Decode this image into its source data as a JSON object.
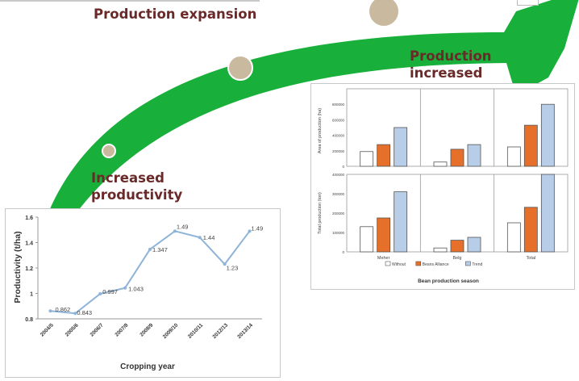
{
  "labels": {
    "expansion": "Production expansion",
    "increased_line1": "Production",
    "increased_line2": "increased",
    "productivity_line1": "Increased",
    "productivity_line2": "productivity"
  },
  "colors": {
    "arrow": "#18b03a",
    "circle": "#c9b99f",
    "label": "#6b2a2a",
    "line": "#8fb4d8",
    "bar_white": "#ffffff",
    "bar_orange": "#e6702a",
    "bar_blue": "#b7cde8"
  },
  "chart_data": [
    {
      "type": "line",
      "xlabel": "Cropping year",
      "ylabel": "Productivity (t/ha)",
      "categories": [
        "2004/5",
        "2005/6",
        "2006/7",
        "2007/8",
        "2008/9",
        "2009/10",
        "2010/11",
        "2012/13",
        "2013/14"
      ],
      "values": [
        0.862,
        0.843,
        0.997,
        1.043,
        1.347,
        1.49,
        1.44,
        1.23,
        1.49
      ],
      "data_labels": [
        "0.862",
        "0.843",
        "0.997",
        "1.043",
        "1.347",
        "1.49",
        "1.44",
        "1.23",
        "1.49"
      ],
      "yticks": [
        "0.8",
        "1",
        "1.2",
        "1.4",
        "1.6"
      ],
      "ylim": [
        0.8,
        1.6
      ]
    },
    {
      "type": "bar",
      "ylabel": "Area of production (ha)",
      "categories": [
        "Meher",
        "Belg",
        "Total"
      ],
      "series": [
        {
          "values": [
            190000,
            55000,
            250000
          ]
        },
        {
          "values": [
            280000,
            220000,
            530000
          ]
        },
        {
          "values": [
            500000,
            280000,
            800000
          ]
        }
      ],
      "yticks": [
        "0",
        "200000",
        "400000",
        "600000",
        "800000"
      ],
      "ylim": [
        0,
        1000000
      ]
    },
    {
      "type": "bar",
      "ylabel": "Total production (ton)",
      "xlabel": "Bean production season",
      "categories": [
        "Meher",
        "Belg",
        "Total"
      ],
      "series": [
        {
          "values": [
            130000,
            20000,
            150000
          ]
        },
        {
          "values": [
            175000,
            60000,
            230000
          ]
        },
        {
          "values": [
            310000,
            75000,
            400000
          ]
        }
      ],
      "yticks": [
        "0",
        "100000",
        "200000",
        "300000",
        "400000"
      ],
      "ylim": [
        0,
        400000
      ],
      "legend": [
        "Without",
        "Beans Alliance",
        "Trend"
      ]
    }
  ]
}
